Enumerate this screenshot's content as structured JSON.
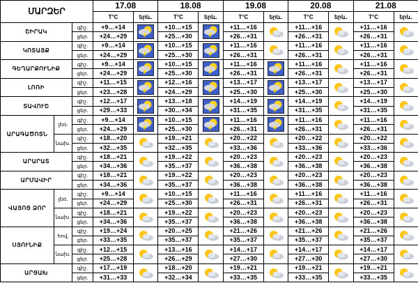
{
  "header": {
    "title": "ՄԱՐԶԵՐ",
    "dates": [
      "17.08",
      "18.08",
      "19.08",
      "20.08",
      "21.08"
    ],
    "temp_label": "T°C",
    "phenomenon_label": "երև.",
    "night_label": "գիշ.",
    "day_label": "ցեր."
  },
  "regions": [
    {
      "name": "ՇԻՐԱԿ",
      "areas": [
        {
          "night": [
            "+9…+14",
            "+10…+15",
            "+11…+16",
            "+11…+16",
            "+11…+16"
          ],
          "day": [
            "+24…+29",
            "+25…+30",
            "+26…+31",
            "+26…+31",
            "+26…+31"
          ]
        }
      ]
    },
    {
      "name": "ԿՈՏԱՅՔ",
      "areas": [
        {
          "night": [
            "+9…+14",
            "+10…+15",
            "+11…+16",
            "+11…+16",
            "+11…+16"
          ],
          "day": [
            "+24…+29",
            "+25…+30",
            "+26…+31",
            "+26…+31",
            "+26…+31"
          ]
        }
      ]
    },
    {
      "name": "ԳԵՂԱՐՔՈՒՆԻՔ",
      "areas": [
        {
          "night": [
            "+9…+14",
            "+10…+15",
            "+11…+16",
            "+11…+16",
            "+11…+16"
          ],
          "day": [
            "+24…+29",
            "+25…+30",
            "+26…+31",
            "+26…+31",
            "+26…+31"
          ]
        }
      ]
    },
    {
      "name": "ԼՈՌԻ",
      "areas": [
        {
          "night": [
            "+11…+15",
            "+12…+16",
            "+13…+17",
            "+13…+17",
            "+13…+17"
          ],
          "day": [
            "+23…+28",
            "+24…+29",
            "+25…+30",
            "+25…+30",
            "+25…+30"
          ]
        }
      ]
    },
    {
      "name": "ՏԱՎՈՒՇ",
      "areas": [
        {
          "night": [
            "+12…+17",
            "+13…+18",
            "+14…+19",
            "+14…+19",
            "+14…+19"
          ],
          "day": [
            "+29…+33",
            "+30…+34",
            "+31…+35",
            "+31…+35",
            "+31…+35"
          ]
        }
      ]
    },
    {
      "name": "ԱՐԱԳԱԾՈՏՆ",
      "areas": [
        {
          "name": "լեռ.",
          "night": [
            "+9…+14",
            "+10…+15",
            "+11…+16",
            "+11…+16",
            "+11…+16"
          ],
          "day": [
            "+24…+29",
            "+25…+30",
            "+26…+31",
            "+26…+31",
            "+26…+31"
          ]
        },
        {
          "name": "նախ.",
          "night": [
            "+18…+20",
            "+19…+21",
            "+20…+22",
            "+20…+22",
            "+20…+22"
          ],
          "day": [
            "+32…+35",
            "+32…+35",
            "+33…+36",
            "+33…+36",
            "+33…+36"
          ]
        }
      ]
    },
    {
      "name": "ԱՐԱՐԱՏ",
      "areas": [
        {
          "night": [
            "+18…+21",
            "+19…+22",
            "+20…+23",
            "+20…+23",
            "+20…+23"
          ],
          "day": [
            "+34…+36",
            "+35…+37",
            "+36…+38",
            "+36…+38",
            "+36…+38"
          ]
        }
      ]
    },
    {
      "name": "ԱՐՄԱՎԻՐ",
      "areas": [
        {
          "night": [
            "+18…+21",
            "+19…+22",
            "+20…+23",
            "+20…+23",
            "+20…+23"
          ],
          "day": [
            "+34…+36",
            "+35…+37",
            "+36…+38",
            "+36…+38",
            "+36…+38"
          ]
        }
      ]
    },
    {
      "name": "ՎԱՅՈՑ ՁՈՐ",
      "areas": [
        {
          "name": "լեռ.",
          "night": [
            "+9…+14",
            "+10…+15",
            "+11…+16",
            "+11…+16",
            "+11…+16"
          ],
          "day": [
            "+24…+29",
            "+25…+30",
            "+26…+31",
            "+26…+31",
            "+26…+31"
          ]
        },
        {
          "name": "նախ.",
          "night": [
            "+18…+21",
            "+19…+22",
            "+20…+23",
            "+20…+23",
            "+20…+23"
          ],
          "day": [
            "+34…+36",
            "+35…+37",
            "+36…+38",
            "+36…+38",
            "+36…+38"
          ]
        }
      ]
    },
    {
      "name": "ՍՅՈՒՆԻՔ",
      "areas": [
        {
          "name": "հով.",
          "night": [
            "+19…+24",
            "+20…+25",
            "+21…+26",
            "+21…+26",
            "+21…+26"
          ],
          "day": [
            "+33…+35",
            "+35…+37",
            "+35…+37",
            "+35…+37",
            "+35…+37"
          ]
        },
        {
          "name": "նախ.",
          "night": [
            "+12…+15",
            "+13…+16",
            "+14…+17",
            "+14…+17",
            "+14…+17"
          ],
          "day": [
            "+25…+28",
            "+26…+29",
            "+27…+30",
            "+27…+30",
            "+27…+30"
          ]
        }
      ]
    },
    {
      "name": "ԱՐՑԱԽ",
      "areas": [
        {
          "night": [
            "+17…+19",
            "+18…+20",
            "+19…+21",
            "+19…+21",
            "+19…+21"
          ],
          "day": [
            "+31…+33",
            "+32…+34",
            "+33…+35",
            "+33…+35",
            "+33…+35"
          ]
        }
      ]
    }
  ]
}
